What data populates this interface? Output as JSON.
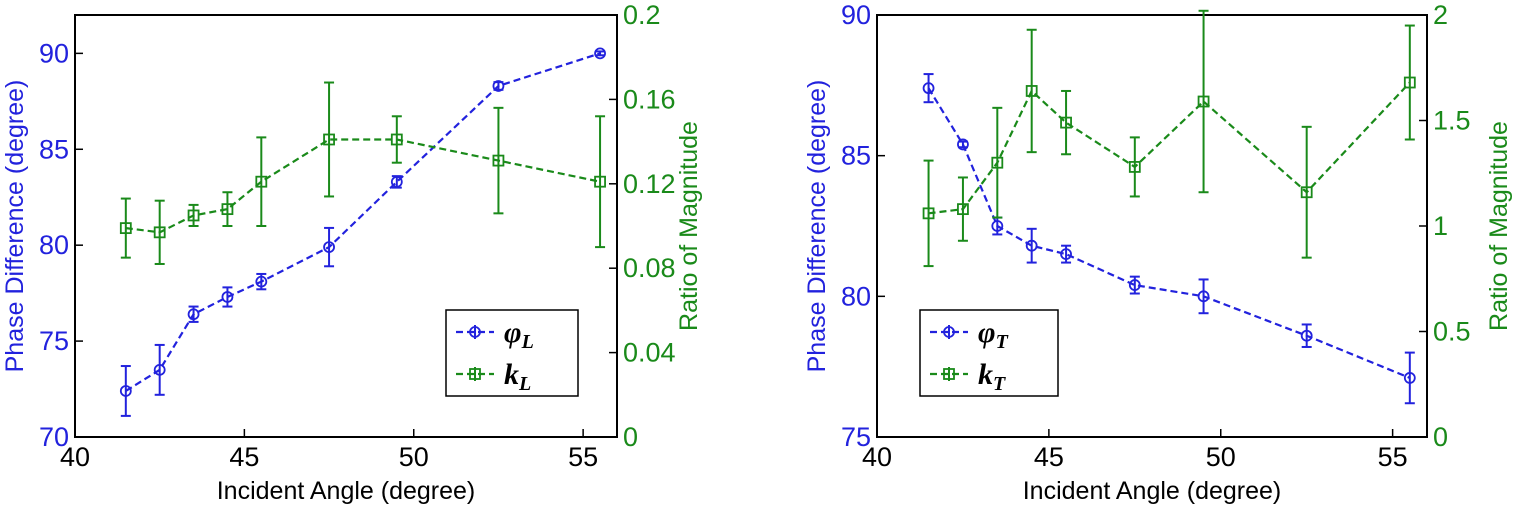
{
  "chart_data": [
    {
      "type": "line",
      "xlabel": "Incident Angle (degree)",
      "ylabel_left": "Phase Difference (degree)",
      "ylabel_right": "Ratio of Magnitude",
      "xlim": [
        40,
        56
      ],
      "ylim_left": [
        70,
        92
      ],
      "ylim_right": [
        0,
        0.2
      ],
      "xticks": [
        40,
        45,
        50,
        55
      ],
      "yticks_left": [
        70,
        75,
        80,
        85,
        90
      ],
      "yticks_right": [
        "0",
        "0.04",
        "0.08",
        "0.12",
        "0.16",
        "0.2"
      ],
      "grid": false,
      "legend_position": "bottom-right",
      "series": [
        {
          "legend_symbol": "φ",
          "legend_subscript": "L",
          "axis": "left",
          "color": "#2222dd",
          "marker": "circle",
          "x": [
            41.5,
            42.5,
            43.5,
            44.5,
            45.5,
            47.5,
            49.5,
            52.5,
            55.5
          ],
          "y": [
            72.4,
            73.5,
            76.4,
            77.3,
            78.1,
            79.9,
            83.3,
            88.3,
            90.0
          ],
          "err": [
            1.3,
            1.3,
            0.4,
            0.5,
            0.4,
            1.0,
            0.3,
            0.2,
            0.1
          ]
        },
        {
          "legend_symbol": "k",
          "legend_subscript": "L",
          "axis": "right",
          "color": "#1a8a1a",
          "marker": "square",
          "x": [
            41.5,
            42.5,
            43.5,
            44.5,
            45.5,
            47.5,
            49.5,
            52.5,
            55.5
          ],
          "y": [
            0.099,
            0.097,
            0.105,
            0.108,
            0.121,
            0.141,
            0.141,
            0.131,
            0.121
          ],
          "err": [
            0.014,
            0.015,
            0.005,
            0.008,
            0.021,
            0.027,
            0.011,
            0.025,
            0.031
          ]
        }
      ]
    },
    {
      "type": "line",
      "xlabel": "Incident Angle (degree)",
      "ylabel_left": "Phase Difference (degree)",
      "ylabel_right": "Ratio of Magnitude",
      "xlim": [
        40,
        56
      ],
      "ylim_left": [
        75,
        90
      ],
      "ylim_right": [
        0,
        2
      ],
      "xticks": [
        40,
        45,
        50,
        55
      ],
      "yticks_left": [
        75,
        80,
        85,
        90
      ],
      "yticks_right": [
        "0",
        "0.5",
        "1",
        "1.5",
        "2"
      ],
      "grid": false,
      "legend_position": "bottom-left",
      "series": [
        {
          "legend_symbol": "φ",
          "legend_subscript": "T",
          "axis": "left",
          "color": "#2222dd",
          "marker": "circle",
          "x": [
            41.5,
            42.5,
            43.5,
            44.5,
            45.5,
            47.5,
            49.5,
            52.5,
            55.5
          ],
          "y": [
            87.4,
            85.4,
            82.5,
            81.8,
            81.5,
            80.4,
            80.0,
            78.6,
            77.1
          ],
          "err": [
            0.5,
            0.1,
            0.3,
            0.6,
            0.3,
            0.3,
            0.6,
            0.4,
            0.9
          ]
        },
        {
          "legend_symbol": "k",
          "legend_subscript": "T",
          "axis": "right",
          "color": "#1a8a1a",
          "marker": "square",
          "x": [
            41.5,
            42.5,
            43.5,
            44.5,
            45.5,
            47.5,
            49.5,
            52.5,
            55.5
          ],
          "y": [
            1.06,
            1.08,
            1.3,
            1.64,
            1.49,
            1.28,
            1.59,
            1.16,
            1.68
          ],
          "err": [
            0.25,
            0.15,
            0.26,
            0.29,
            0.15,
            0.14,
            0.43,
            0.31,
            0.27
          ]
        }
      ]
    }
  ]
}
